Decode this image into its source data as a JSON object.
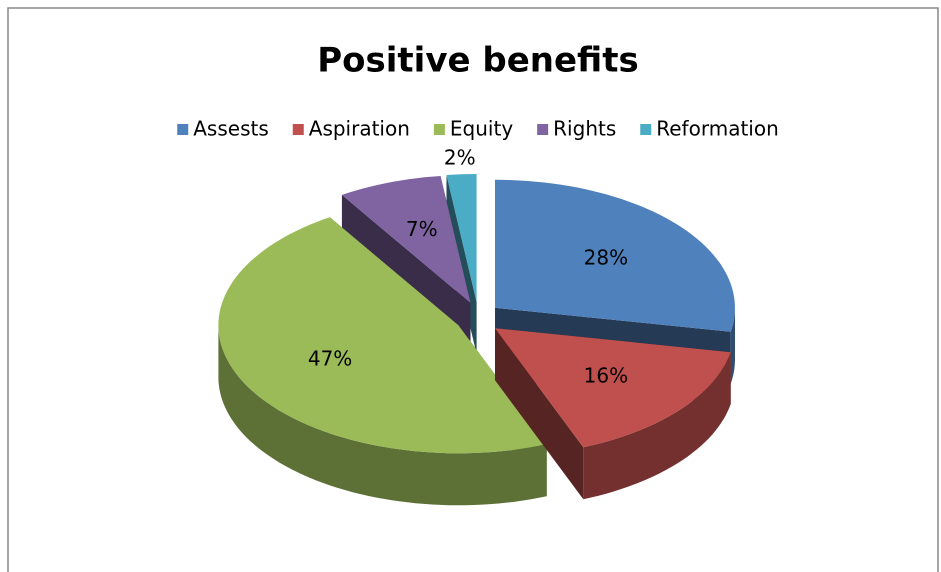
{
  "chart_data": {
    "type": "pie",
    "title": "Positive benefits",
    "categories": [
      "Assests",
      "Aspiration",
      "Equity",
      "Rights",
      "Reformation"
    ],
    "values": [
      28,
      16,
      47,
      7,
      2
    ],
    "value_labels": [
      "28%",
      "16%",
      "47%",
      "7%",
      "2%"
    ],
    "colors": [
      "#4f81bd",
      "#c0504d",
      "#9bbb59",
      "#8064a2",
      "#4bacc6"
    ],
    "legend": "top"
  }
}
